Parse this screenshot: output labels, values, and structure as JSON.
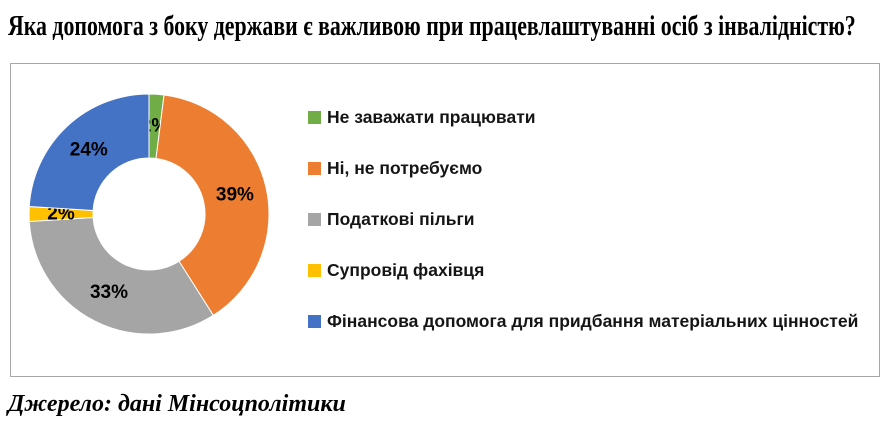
{
  "title": "Яка допомога з боку держави є важливою при працевлаштуванні осіб з інвалідністю?",
  "source": "Джерело: дані Мінсоцполітики",
  "chart_data": {
    "type": "pie",
    "subtype": "donut",
    "categories": [
      "Не заважати працювати",
      "Ні, не потребуємо",
      "Податкові пільги",
      "Супровід фахівця",
      "Фінансова допомога для придбання матеріальних цінностей"
    ],
    "values": [
      2,
      39,
      33,
      2,
      24
    ],
    "unit": "%",
    "data_labels": [
      "2%",
      "39%",
      "33%",
      "2%",
      "24%"
    ],
    "colors": [
      "#70AD47",
      "#ED7D31",
      "#A5A5A5",
      "#FFC000",
      "#4472C4"
    ],
    "legend_position": "right",
    "start_angle_deg": 0,
    "direction": "clockwise",
    "donut_hole_ratio": 0.47,
    "slice_border_color": "#FFFFFF",
    "label_text_color": "#000000",
    "panel_border_color": "#A6A6A6"
  }
}
